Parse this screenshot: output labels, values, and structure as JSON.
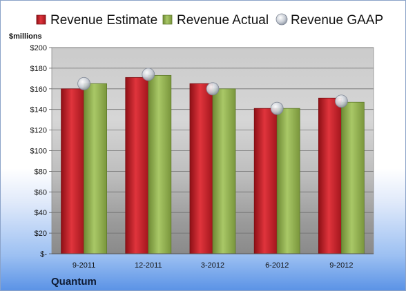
{
  "chart_data": {
    "type": "bar",
    "categories": [
      "9-2011",
      "12-2011",
      "3-2012",
      "6-2012",
      "9-2012"
    ],
    "series": [
      {
        "name": "Revenue Estimate",
        "kind": "bar",
        "color": "#c8202a",
        "values": [
          160,
          171,
          165,
          141,
          151
        ]
      },
      {
        "name": "Revenue Actual",
        "kind": "bar",
        "color": "#8fb04a",
        "values": [
          165,
          173,
          160,
          141,
          147
        ]
      },
      {
        "name": "Revenue GAAP",
        "kind": "marker",
        "color": "#c9ced6",
        "values": [
          165,
          174,
          160,
          141,
          148
        ]
      }
    ],
    "ylabel": "$millions",
    "ylim": [
      0,
      200
    ],
    "yticks": [
      0,
      20,
      40,
      60,
      80,
      100,
      120,
      140,
      160,
      180,
      200
    ],
    "ytick_labels": [
      "$-",
      "$20",
      "$40",
      "$60",
      "$80",
      "$100",
      "$120",
      "$140",
      "$160",
      "$180",
      "$200"
    ],
    "grid": true,
    "legend_position": "top",
    "annotation": "Quantum"
  }
}
